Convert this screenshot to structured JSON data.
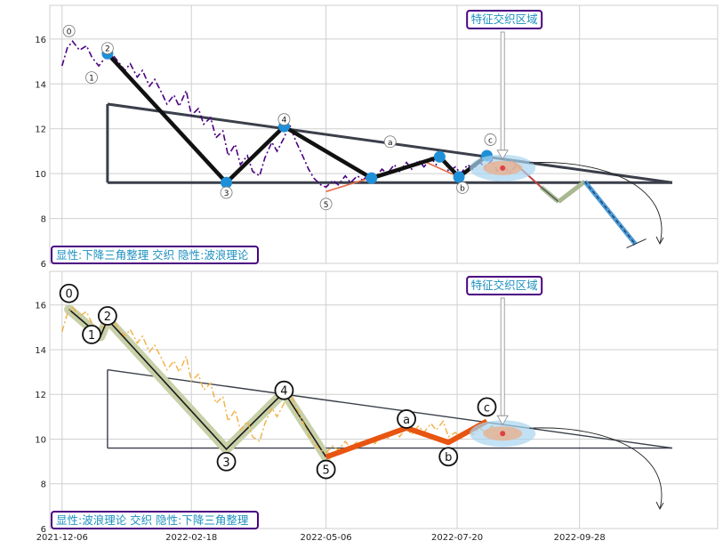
{
  "chart_data": [
    {
      "type": "line",
      "panel": "top",
      "xlim": [
        "2021-11-29",
        "2022-12-16"
      ],
      "ylim": [
        6,
        17.5
      ],
      "yticks": [
        6,
        8,
        10,
        12,
        14,
        16
      ],
      "grid": true,
      "annotation_box": "特征交织区域",
      "caption_box": "显性:下降三角整理 交织 隐性:波浪理论",
      "triangle": {
        "upper": [
          [
            "2022-01-01",
            13.1
          ],
          [
            "2022-11-20",
            9.6
          ]
        ],
        "lower": [
          [
            "2022-01-01",
            9.6
          ],
          [
            "2022-11-20",
            9.6
          ]
        ]
      },
      "wave_points": [
        {
          "label": "0",
          "x": "2021-12-10",
          "y": 15.8
        },
        {
          "label": "1",
          "x": "2021-12-28",
          "y": 14.6
        },
        {
          "label": "2",
          "x": "2022-01-01",
          "y": 15.35
        },
        {
          "label": "3",
          "x": "2022-03-10",
          "y": 9.55
        },
        {
          "label": "4",
          "x": "2022-04-12",
          "y": 12.1
        },
        {
          "label": "5",
          "x": "2022-05-06",
          "y": 9.2
        },
        {
          "label": "a",
          "x": "2022-07-01",
          "y": 10.55
        },
        {
          "label": "b",
          "x": "2022-07-21",
          "y": 9.85
        },
        {
          "label": "c",
          "x": "2022-08-06",
          "y": 10.8
        }
      ],
      "swing_line": [
        [
          "2022-01-01",
          15.35
        ],
        [
          "2022-03-10",
          9.6
        ],
        [
          "2022-04-12",
          12.1
        ],
        [
          "2022-06-01",
          9.8
        ],
        [
          "2022-07-10",
          10.75
        ],
        [
          "2022-07-21",
          9.85
        ],
        [
          "2022-08-06",
          10.8
        ]
      ],
      "projection": [
        [
          "2022-08-20",
          10.6
        ],
        [
          "2022-09-06",
          9.4
        ],
        [
          "2022-09-16",
          8.75
        ],
        [
          "2022-10-01",
          9.65
        ],
        [
          "2022-10-30",
          6.85
        ]
      ],
      "price": [
        [
          "2021-12-06",
          14.8
        ],
        [
          "2021-12-09",
          15.6
        ],
        [
          "2021-12-12",
          15.9
        ],
        [
          "2021-12-16",
          15.5
        ],
        [
          "2021-12-20",
          15.7
        ],
        [
          "2021-12-23",
          15.2
        ],
        [
          "2021-12-27",
          14.8
        ],
        [
          "2021-12-30",
          15.1
        ],
        [
          "2022-01-03",
          15.4
        ],
        [
          "2022-01-07",
          15.0
        ],
        [
          "2022-01-11",
          14.6
        ],
        [
          "2022-01-14",
          14.9
        ],
        [
          "2022-01-18",
          14.3
        ],
        [
          "2022-01-21",
          14.6
        ],
        [
          "2022-01-25",
          13.9
        ],
        [
          "2022-01-28",
          14.2
        ],
        [
          "2022-02-01",
          13.6
        ],
        [
          "2022-02-04",
          13.1
        ],
        [
          "2022-02-08",
          13.5
        ],
        [
          "2022-02-11",
          13.0
        ],
        [
          "2022-02-15",
          13.7
        ],
        [
          "2022-02-18",
          12.6
        ],
        [
          "2022-02-22",
          12.9
        ],
        [
          "2022-02-25",
          12.2
        ],
        [
          "2022-03-01",
          12.5
        ],
        [
          "2022-03-04",
          11.6
        ],
        [
          "2022-03-08",
          11.9
        ],
        [
          "2022-03-11",
          10.8
        ],
        [
          "2022-03-15",
          11.3
        ],
        [
          "2022-03-18",
          10.4
        ],
        [
          "2022-03-22",
          10.8
        ],
        [
          "2022-03-25",
          10.1
        ],
        [
          "2022-03-29",
          9.9
        ],
        [
          "2022-04-01",
          10.7
        ],
        [
          "2022-04-05",
          11.4
        ],
        [
          "2022-04-08",
          11.0
        ],
        [
          "2022-04-12",
          11.6
        ],
        [
          "2022-04-15",
          12.2
        ],
        [
          "2022-04-19",
          11.4
        ],
        [
          "2022-04-22",
          10.9
        ],
        [
          "2022-04-26",
          10.2
        ],
        [
          "2022-04-29",
          9.8
        ],
        [
          "2022-05-03",
          9.5
        ],
        [
          "2022-05-06",
          9.4
        ],
        [
          "2022-05-10",
          9.7
        ],
        [
          "2022-05-13",
          9.5
        ],
        [
          "2022-05-17",
          9.9
        ],
        [
          "2022-05-20",
          9.6
        ],
        [
          "2022-05-24",
          9.9
        ],
        [
          "2022-05-27",
          9.7
        ],
        [
          "2022-05-31",
          10.0
        ],
        [
          "2022-06-03",
          9.8
        ],
        [
          "2022-06-07",
          10.2
        ],
        [
          "2022-06-10",
          10.0
        ],
        [
          "2022-06-14",
          10.4
        ],
        [
          "2022-06-17",
          10.1
        ],
        [
          "2022-06-21",
          10.5
        ],
        [
          "2022-06-24",
          10.2
        ],
        [
          "2022-06-28",
          10.6
        ],
        [
          "2022-07-01",
          10.3
        ],
        [
          "2022-07-05",
          10.7
        ],
        [
          "2022-07-08",
          10.4
        ],
        [
          "2022-07-12",
          10.8
        ],
        [
          "2022-07-15",
          10.1
        ],
        [
          "2022-07-19",
          10.3
        ],
        [
          "2022-07-22",
          10.0
        ],
        [
          "2022-07-26",
          10.4
        ],
        [
          "2022-07-29",
          10.2
        ],
        [
          "2022-08-02",
          10.5
        ],
        [
          "2022-08-05",
          10.3
        ],
        [
          "2022-08-09",
          10.6
        ],
        [
          "2022-08-12",
          10.1
        ],
        [
          "2022-08-16",
          10.3
        ],
        [
          "2022-08-19",
          10.0
        ],
        [
          "2022-08-23",
          10.4
        ]
      ]
    },
    {
      "type": "line",
      "panel": "bottom",
      "xlim": [
        "2021-11-29",
        "2022-12-16"
      ],
      "ylim": [
        6,
        17.5
      ],
      "yticks": [
        6,
        8,
        10,
        12,
        14,
        16
      ],
      "xticks": [
        "2021-12-06",
        "2022-02-18",
        "2022-05-06",
        "2022-07-20",
        "2022-09-28"
      ],
      "grid": true,
      "annotation_box": "特征交织区域",
      "caption_box": "显性:波浪理论 交织 隐性:下降三角整理",
      "triangle": {
        "upper": [
          [
            "2022-01-01",
            13.1
          ],
          [
            "2022-11-20",
            9.6
          ]
        ],
        "lower": [
          [
            "2022-01-01",
            9.6
          ],
          [
            "2022-11-20",
            9.6
          ]
        ]
      },
      "wave_points": [
        {
          "label": "0",
          "x": "2021-12-10",
          "y": 15.8
        },
        {
          "label": "1",
          "x": "2021-12-28",
          "y": 14.6
        },
        {
          "label": "2",
          "x": "2022-01-01",
          "y": 15.35
        },
        {
          "label": "3",
          "x": "2022-03-10",
          "y": 9.55
        },
        {
          "label": "4",
          "x": "2022-04-12",
          "y": 12.1
        },
        {
          "label": "5",
          "x": "2022-05-06",
          "y": 9.2
        },
        {
          "label": "a",
          "x": "2022-06-21",
          "y": 10.5
        },
        {
          "label": "b",
          "x": "2022-07-15",
          "y": 9.85
        },
        {
          "label": "c",
          "x": "2022-08-06",
          "y": 10.8
        }
      ],
      "impulse_line": [
        [
          "2021-12-10",
          15.8
        ],
        [
          "2021-12-28",
          14.6
        ],
        [
          "2022-01-01",
          15.35
        ],
        [
          "2022-03-10",
          9.55
        ],
        [
          "2022-04-12",
          12.1
        ],
        [
          "2022-05-06",
          9.2
        ]
      ],
      "corrective_line": [
        [
          "2022-05-06",
          9.2
        ],
        [
          "2022-06-21",
          10.5
        ],
        [
          "2022-07-15",
          9.85
        ],
        [
          "2022-08-06",
          10.8
        ]
      ],
      "price": [
        [
          "2021-12-06",
          14.8
        ],
        [
          "2021-12-09",
          15.6
        ],
        [
          "2021-12-12",
          15.9
        ],
        [
          "2021-12-16",
          15.5
        ],
        [
          "2021-12-20",
          15.7
        ],
        [
          "2021-12-23",
          15.2
        ],
        [
          "2021-12-27",
          14.8
        ],
        [
          "2021-12-30",
          15.1
        ],
        [
          "2022-01-03",
          15.4
        ],
        [
          "2022-01-07",
          15.0
        ],
        [
          "2022-01-11",
          14.6
        ],
        [
          "2022-01-14",
          14.9
        ],
        [
          "2022-01-18",
          14.3
        ],
        [
          "2022-01-21",
          14.6
        ],
        [
          "2022-01-25",
          13.9
        ],
        [
          "2022-01-28",
          14.2
        ],
        [
          "2022-02-01",
          13.6
        ],
        [
          "2022-02-04",
          13.1
        ],
        [
          "2022-02-08",
          13.5
        ],
        [
          "2022-02-11",
          13.0
        ],
        [
          "2022-02-15",
          13.7
        ],
        [
          "2022-02-18",
          12.6
        ],
        [
          "2022-02-22",
          12.9
        ],
        [
          "2022-02-25",
          12.2
        ],
        [
          "2022-03-01",
          12.5
        ],
        [
          "2022-03-04",
          11.6
        ],
        [
          "2022-03-08",
          11.9
        ],
        [
          "2022-03-11",
          10.8
        ],
        [
          "2022-03-15",
          11.3
        ],
        [
          "2022-03-18",
          10.4
        ],
        [
          "2022-03-22",
          10.8
        ],
        [
          "2022-03-25",
          10.1
        ],
        [
          "2022-03-29",
          9.9
        ],
        [
          "2022-04-01",
          10.7
        ],
        [
          "2022-04-05",
          11.4
        ],
        [
          "2022-04-08",
          11.0
        ],
        [
          "2022-04-12",
          11.6
        ],
        [
          "2022-04-15",
          12.2
        ],
        [
          "2022-04-19",
          11.4
        ],
        [
          "2022-04-22",
          10.9
        ],
        [
          "2022-04-26",
          10.2
        ],
        [
          "2022-04-29",
          9.8
        ],
        [
          "2022-05-03",
          9.5
        ],
        [
          "2022-05-06",
          9.4
        ],
        [
          "2022-05-10",
          9.7
        ],
        [
          "2022-05-13",
          9.5
        ],
        [
          "2022-05-17",
          9.9
        ],
        [
          "2022-05-20",
          9.6
        ],
        [
          "2022-05-24",
          9.9
        ],
        [
          "2022-05-27",
          9.7
        ],
        [
          "2022-05-31",
          10.0
        ],
        [
          "2022-06-03",
          9.8
        ],
        [
          "2022-06-07",
          10.2
        ],
        [
          "2022-06-10",
          10.0
        ],
        [
          "2022-06-14",
          10.4
        ],
        [
          "2022-06-17",
          10.1
        ],
        [
          "2022-06-21",
          10.5
        ],
        [
          "2022-06-24",
          10.2
        ],
        [
          "2022-06-28",
          10.6
        ],
        [
          "2022-07-01",
          10.3
        ],
        [
          "2022-07-05",
          10.7
        ],
        [
          "2022-07-08",
          10.4
        ],
        [
          "2022-07-12",
          10.8
        ],
        [
          "2022-07-15",
          10.1
        ],
        [
          "2022-07-19",
          10.3
        ],
        [
          "2022-07-22",
          10.0
        ],
        [
          "2022-07-26",
          10.4
        ],
        [
          "2022-07-29",
          10.2
        ],
        [
          "2022-08-02",
          10.5
        ],
        [
          "2022-08-05",
          10.3
        ],
        [
          "2022-08-09",
          10.6
        ],
        [
          "2022-08-12",
          10.1
        ],
        [
          "2022-08-16",
          10.3
        ],
        [
          "2022-08-19",
          10.0
        ],
        [
          "2022-08-23",
          10.4
        ]
      ]
    }
  ],
  "colors": {
    "price_top": "#4b0082",
    "price_bottom": "#f0b040",
    "triangle": "#3a3f4a",
    "swing_line": "#111111",
    "marker": "#1e90d8",
    "impulse_band": "#c8d0a8",
    "corrective": "#e85510",
    "box_border": "#4b0082",
    "box_text": "#1e90c0",
    "zone_blue": "#a8d4f0",
    "zone_red": "#e04040",
    "projection_green": "#a8b890",
    "projection_blue": "#4a9ad8"
  }
}
